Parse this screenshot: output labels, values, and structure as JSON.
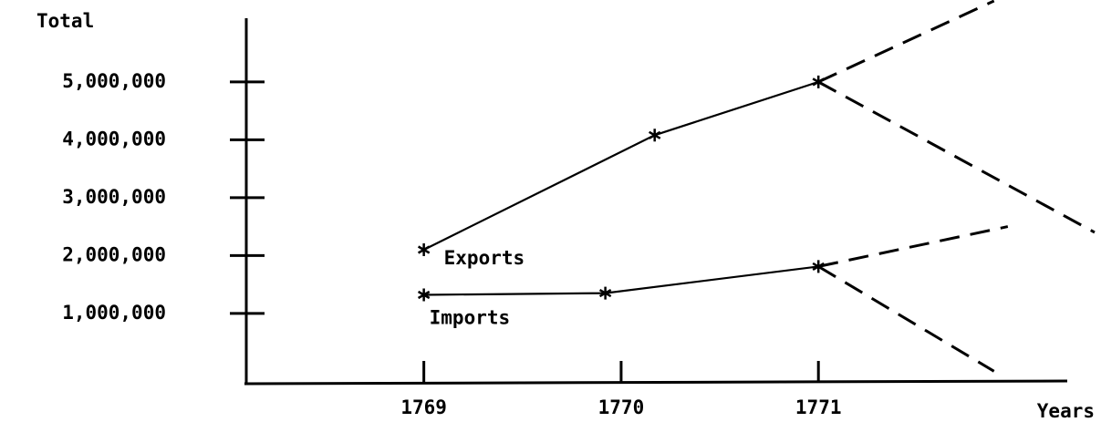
{
  "chart_data": {
    "type": "line",
    "y_label": "Total",
    "x_label": "Years",
    "xlim": [
      1768.1,
      1772.4
    ],
    "xticks": [
      1769,
      1770,
      1771
    ],
    "ylim": [
      -200000,
      6400000
    ],
    "yticks": [
      {
        "value": 1000000,
        "label": "1,000,000"
      },
      {
        "value": 2000000,
        "label": "2,000,000"
      },
      {
        "value": 3000000,
        "label": "3,000,000"
      },
      {
        "value": 4000000,
        "label": "4,000,000"
      },
      {
        "value": 5000000,
        "label": "5,000,000"
      }
    ],
    "series": [
      {
        "name": "Exports",
        "color": "#000000",
        "x": [
          1769,
          1770.17,
          1771
        ],
        "values": [
          2100000,
          4080000,
          5000000
        ],
        "markers": true
      },
      {
        "name": "Imports",
        "color": "#000000",
        "x": [
          1769,
          1769.92,
          1771
        ],
        "values": [
          1320000,
          1350000,
          1810000
        ],
        "markers": true
      }
    ],
    "projections": [
      {
        "color": "#000000",
        "dashed": true,
        "x": [
          1771,
          1771.89
        ],
        "values": [
          5000000,
          6400000
        ]
      },
      {
        "color": "#000000",
        "dashed": true,
        "x": [
          1771,
          1772.4
        ],
        "values": [
          5000000,
          2400000
        ]
      },
      {
        "color": "#000000",
        "dashed": true,
        "x": [
          1771,
          1771.96
        ],
        "values": [
          1810000,
          2500000
        ]
      },
      {
        "color": "#000000",
        "dashed": true,
        "x": [
          1771,
          1771.89
        ],
        "values": [
          1810000,
          0
        ]
      }
    ]
  }
}
